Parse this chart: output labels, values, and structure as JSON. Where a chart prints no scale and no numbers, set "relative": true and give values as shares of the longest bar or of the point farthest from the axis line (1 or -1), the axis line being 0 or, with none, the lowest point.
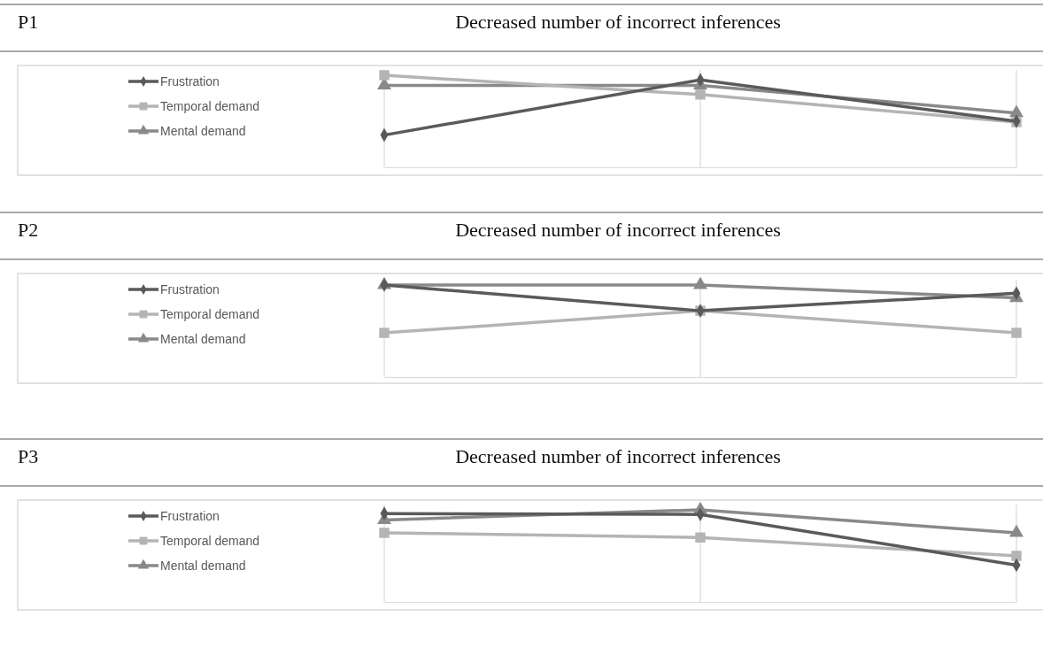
{
  "chart_data": [
    {
      "type": "line",
      "title": "Decreased number of incorrect inferences",
      "annotations": [
        "P1"
      ],
      "relative": true,
      "categories": [
        null,
        null,
        null
      ],
      "grid": "x",
      "legend": "left",
      "series": [
        {
          "name": "Frustration",
          "color": "#5a5a5a",
          "marker": "diamond",
          "values": [
            0.35,
            0.95,
            0.5
          ]
        },
        {
          "name": "Temporal demand",
          "color": "#b4b4b4",
          "marker": "square",
          "values": [
            1,
            0.79,
            0.49
          ]
        },
        {
          "name": "Mental demand",
          "color": "#898989",
          "marker": "triangle",
          "values": [
            0.89,
            0.89,
            0.59
          ]
        }
      ]
    },
    {
      "type": "line",
      "title": "Decreased number of incorrect inferences",
      "annotations": [
        "P2"
      ],
      "relative": true,
      "categories": [
        null,
        null,
        null
      ],
      "grid": "x",
      "legend": "left",
      "series": [
        {
          "name": "Frustration",
          "color": "#5a5a5a",
          "marker": "diamond",
          "values": [
            1,
            0.72,
            0.91
          ]
        },
        {
          "name": "Temporal demand",
          "color": "#b4b4b4",
          "marker": "square",
          "values": [
            0.48,
            0.72,
            0.48
          ]
        },
        {
          "name": "Mental demand",
          "color": "#898989",
          "marker": "triangle",
          "values": [
            1,
            1,
            0.86
          ]
        }
      ]
    },
    {
      "type": "line",
      "title": "Decreased number of incorrect inferences",
      "annotations": [
        "P3"
      ],
      "relative": true,
      "categories": [
        null,
        null,
        null
      ],
      "grid": "x",
      "legend": "left",
      "series": [
        {
          "name": "Frustration",
          "color": "#5a5a5a",
          "marker": "diamond",
          "values": [
            0.96,
            0.95,
            0.4
          ]
        },
        {
          "name": "Temporal demand",
          "color": "#b4b4b4",
          "marker": "square",
          "values": [
            0.75,
            0.7,
            0.5
          ]
        },
        {
          "name": "Mental demand",
          "color": "#898989",
          "marker": "triangle",
          "values": [
            0.89,
            1,
            0.75
          ]
        }
      ]
    }
  ]
}
